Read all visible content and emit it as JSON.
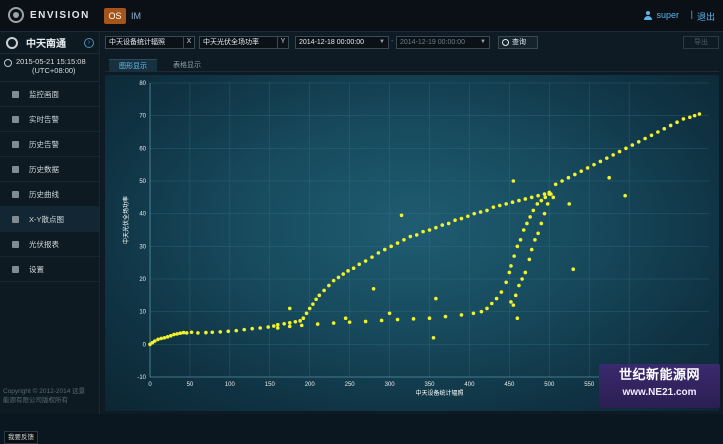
{
  "brand": "ENVISION",
  "top_tabs": {
    "os": "OS",
    "im": "IM"
  },
  "user": {
    "name": "super",
    "separator": "|",
    "logout": "退出"
  },
  "sidebar": {
    "site_name": "中天南通",
    "clock": {
      "date": "2015-05-21 15:15:08",
      "tz": "(UTC+08:00)"
    },
    "items": [
      {
        "label": "监控画面",
        "icon": "monitor-icon"
      },
      {
        "label": "实时告警",
        "icon": "person-icon"
      },
      {
        "label": "历史告警",
        "icon": "history-alarm-icon"
      },
      {
        "label": "历史数据",
        "icon": "data-icon"
      },
      {
        "label": "历史曲线",
        "icon": "curve-icon"
      },
      {
        "label": "X-Y散点图",
        "icon": "scatter-icon"
      },
      {
        "label": "光伏报表",
        "icon": "report-icon"
      },
      {
        "label": "设置",
        "icon": "settings-icon"
      }
    ],
    "copyright": "Copyright © 2012-2014 远景\n能源有限公司版权所有",
    "feedback": "我要反馈"
  },
  "filters": {
    "x_field": "中天设备统计辐照",
    "x_clear": "X",
    "y_field": "中天光伏全场功率",
    "y_clear": "Y",
    "start": "2014-12-18 00:00:00",
    "end": "2014-12-19 00:00:00",
    "query": "查询",
    "export": "导出"
  },
  "subtabs": {
    "graph": "图形显示",
    "table": "表格显示"
  },
  "chart_data": {
    "type": "scatter",
    "xlabel": "中天设备统计辐照",
    "ylabel": "中天光伏全场功率",
    "xlim": [
      0,
      700
    ],
    "ylim": [
      -10,
      80
    ],
    "xticks": [
      0,
      50,
      100,
      150,
      200,
      250,
      300,
      350,
      400,
      450,
      500,
      550,
      600
    ],
    "yticks": [
      -10,
      0,
      10,
      20,
      30,
      40,
      50,
      60,
      70,
      80
    ],
    "grid": true,
    "color": "#f2f22a",
    "points": [
      [
        0,
        0
      ],
      [
        3,
        0.5
      ],
      [
        6,
        1
      ],
      [
        10,
        1.5
      ],
      [
        14,
        1.8
      ],
      [
        18,
        2
      ],
      [
        22,
        2.3
      ],
      [
        26,
        2.6
      ],
      [
        30,
        3
      ],
      [
        34,
        3.2
      ],
      [
        38,
        3.4
      ],
      [
        42,
        3.6
      ],
      [
        46,
        3.5
      ],
      [
        52,
        3.7
      ],
      [
        60,
        3.5
      ],
      [
        70,
        3.6
      ],
      [
        78,
        3.7
      ],
      [
        88,
        3.8
      ],
      [
        98,
        4
      ],
      [
        108,
        4.2
      ],
      [
        118,
        4.5
      ],
      [
        128,
        4.8
      ],
      [
        138,
        5
      ],
      [
        148,
        5.3
      ],
      [
        155,
        5.6
      ],
      [
        160,
        6
      ],
      [
        168,
        6.3
      ],
      [
        175,
        6.6
      ],
      [
        182,
        6.9
      ],
      [
        188,
        7.2
      ],
      [
        192,
        8
      ],
      [
        196,
        9.5
      ],
      [
        200,
        11
      ],
      [
        204,
        12.3
      ],
      [
        208,
        13.8
      ],
      [
        212,
        15
      ],
      [
        218,
        16.5
      ],
      [
        224,
        18
      ],
      [
        230,
        19.5
      ],
      [
        236,
        20.5
      ],
      [
        242,
        21.5
      ],
      [
        248,
        22.5
      ],
      [
        255,
        23.3
      ],
      [
        262,
        24.5
      ],
      [
        270,
        25.5
      ],
      [
        278,
        26.7
      ],
      [
        286,
        28
      ],
      [
        294,
        29
      ],
      [
        302,
        30
      ],
      [
        310,
        31
      ],
      [
        318,
        32
      ],
      [
        326,
        33
      ],
      [
        334,
        33.5
      ],
      [
        342,
        34.5
      ],
      [
        350,
        35
      ],
      [
        358,
        35.7
      ],
      [
        366,
        36.5
      ],
      [
        374,
        37
      ],
      [
        382,
        38
      ],
      [
        390,
        38.5
      ],
      [
        398,
        39.2
      ],
      [
        406,
        40
      ],
      [
        414,
        40.5
      ],
      [
        422,
        41
      ],
      [
        430,
        42
      ],
      [
        438,
        42.5
      ],
      [
        446,
        43
      ],
      [
        454,
        43.5
      ],
      [
        462,
        44
      ],
      [
        470,
        44.5
      ],
      [
        478,
        45
      ],
      [
        486,
        45.5
      ],
      [
        494,
        46
      ],
      [
        500,
        46.5
      ],
      [
        508,
        49
      ],
      [
        516,
        50
      ],
      [
        524,
        51
      ],
      [
        532,
        52
      ],
      [
        540,
        53
      ],
      [
        548,
        54
      ],
      [
        556,
        55
      ],
      [
        564,
        56
      ],
      [
        572,
        57
      ],
      [
        580,
        58
      ],
      [
        588,
        59
      ],
      [
        596,
        60
      ],
      [
        604,
        61
      ],
      [
        612,
        62
      ],
      [
        620,
        63
      ],
      [
        628,
        64
      ],
      [
        636,
        65
      ],
      [
        644,
        66
      ],
      [
        652,
        67
      ],
      [
        660,
        68
      ],
      [
        668,
        69
      ],
      [
        676,
        69.5
      ],
      [
        682,
        70
      ],
      [
        688,
        70.5
      ],
      [
        160,
        5
      ],
      [
        175,
        5.5
      ],
      [
        190,
        5.8
      ],
      [
        210,
        6.2
      ],
      [
        230,
        6.5
      ],
      [
        250,
        6.8
      ],
      [
        270,
        7
      ],
      [
        290,
        7.3
      ],
      [
        310,
        7.6
      ],
      [
        330,
        7.8
      ],
      [
        350,
        8
      ],
      [
        370,
        8.5
      ],
      [
        390,
        9
      ],
      [
        405,
        9.5
      ],
      [
        415,
        10
      ],
      [
        422,
        11
      ],
      [
        428,
        12.5
      ],
      [
        434,
        14
      ],
      [
        440,
        16
      ],
      [
        446,
        19
      ],
      [
        450,
        22
      ],
      [
        452,
        24
      ],
      [
        456,
        27
      ],
      [
        460,
        30
      ],
      [
        464,
        32
      ],
      [
        468,
        35
      ],
      [
        472,
        37
      ],
      [
        476,
        39
      ],
      [
        480,
        41
      ],
      [
        485,
        43
      ],
      [
        490,
        44
      ],
      [
        495,
        45
      ],
      [
        500,
        46
      ],
      [
        452,
        13
      ],
      [
        455,
        12
      ],
      [
        458,
        15
      ],
      [
        462,
        18
      ],
      [
        466,
        20
      ],
      [
        470,
        22
      ],
      [
        475,
        26
      ],
      [
        478,
        29
      ],
      [
        482,
        32
      ],
      [
        486,
        34
      ],
      [
        490,
        37
      ],
      [
        494,
        40
      ],
      [
        498,
        43
      ],
      [
        502,
        46
      ],
      [
        315,
        39.5
      ],
      [
        505,
        45
      ],
      [
        525,
        43
      ],
      [
        575,
        51
      ],
      [
        595,
        45.5
      ],
      [
        530,
        23
      ],
      [
        455,
        50
      ],
      [
        355,
        2
      ],
      [
        358,
        14
      ],
      [
        460,
        8
      ],
      [
        245,
        8
      ],
      [
        300,
        9.5
      ],
      [
        280,
        17
      ],
      [
        175,
        11
      ]
    ]
  }
}
